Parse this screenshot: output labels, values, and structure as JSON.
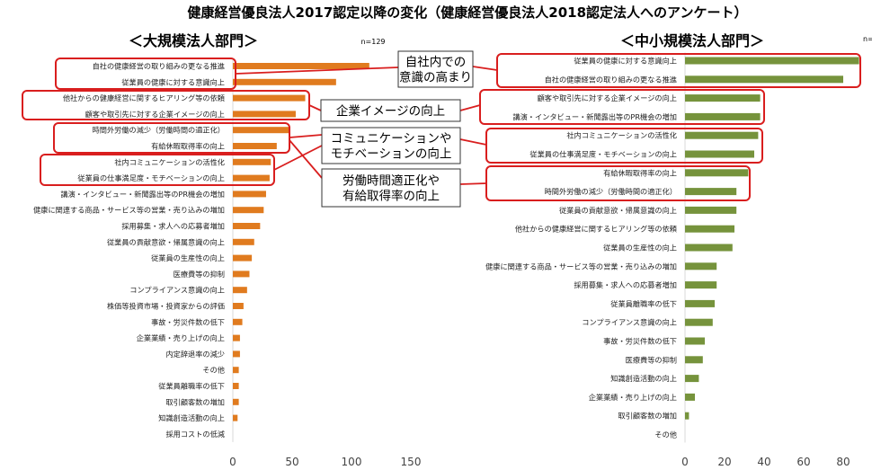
{
  "main_title": "健康経営優良法人2017認定以降の変化（健康経営優良法人2018認定法人へのアンケート）",
  "chart_data": [
    {
      "type": "bar",
      "orientation": "horizontal",
      "title": "＜大規模法人部門＞",
      "note": "n=129",
      "color": "#E07B1F",
      "xlim": [
        0,
        150
      ],
      "xticks": [
        0,
        50,
        100,
        150
      ],
      "categories": [
        "自社の健康経営の取り組みの更なる推進",
        "従業員の健康に対する意識向上",
        "他社からの健康経営に関するヒアリング等の依頼",
        "顧客や取引先に対する企業イメージの向上",
        "時間外労働の減少（労働時間の適正化）",
        "有給休暇取得率の向上",
        "社内コミュニケーションの活性化",
        "従業員の仕事満足度・モチベーションの向上",
        "講演・インタビュー・新聞露出等のPR機会の増加",
        "健康に関連する商品・サービス等の営業・売り込みの増加",
        "採用募集・求人への応募者増加",
        "従業員の貢献意欲・帰属意識の向上",
        "従業員の生産性の向上",
        "医療費等の抑制",
        "コンプライアンス意識の向上",
        "株価等投資市場・投資家からの評価",
        "事故・労災件数の低下",
        "企業業績・売り上げの向上",
        "内定辞退率の減少",
        "その他",
        "従業員離職率の低下",
        "取引顧客数の増加",
        "知識創造活動の向上",
        "採用コストの低減"
      ],
      "values": [
        115,
        87,
        61,
        53,
        47,
        37,
        32,
        31,
        28,
        26,
        23,
        18,
        16,
        14,
        12,
        9,
        8,
        6,
        6,
        5,
        5,
        5,
        4,
        0
      ]
    },
    {
      "type": "bar",
      "orientation": "horizontal",
      "title": "＜中小規模法人部門＞",
      "note": "n=",
      "color": "#76933C",
      "xlim": [
        0,
        90
      ],
      "xticks": [
        0,
        20,
        40,
        60,
        80
      ],
      "categories": [
        "従業員の健康に対する意識向上",
        "自社の健康経営の取り組みの更なる推進",
        "顧客や取引先に対する企業イメージの向上",
        "講演・インタビュー・新聞露出等のPR機会の増加",
        "社内コミュニケーションの活性化",
        "従業員の仕事満足度・モチベーションの向上",
        "有給休暇取得率の向上",
        "時間外労働の減少（労働時間の適正化）",
        "従業員の貢献意欲・帰属意識の向上",
        "他社からの健康経営に関するヒアリング等の依頼",
        "従業員の生産性の向上",
        "健康に関連する商品・サービス等の営業・売り込みの増加",
        "採用募集・求人への応募者増加",
        "従業員離職率の低下",
        "コンプライアンス意識の向上",
        "事故・労災件数の低下",
        "医療費等の抑制",
        "知識創造活動の向上",
        "企業業績・売り上げの向上",
        "取引顧客数の増加",
        "その他"
      ],
      "values": [
        88,
        80,
        38,
        38,
        37,
        35,
        32,
        26,
        26,
        25,
        24,
        16,
        16,
        15,
        14,
        10,
        9,
        7,
        5,
        2,
        0
      ]
    }
  ],
  "callouts": [
    {
      "lines": [
        "自社内での",
        "意識の高まり"
      ]
    },
    {
      "lines": [
        "企業イメージの向上"
      ]
    },
    {
      "lines": [
        "コミュニケーションや",
        "モチベーションの向上"
      ]
    },
    {
      "lines": [
        "労働時間適正化や",
        "有給取得率の向上"
      ]
    }
  ]
}
